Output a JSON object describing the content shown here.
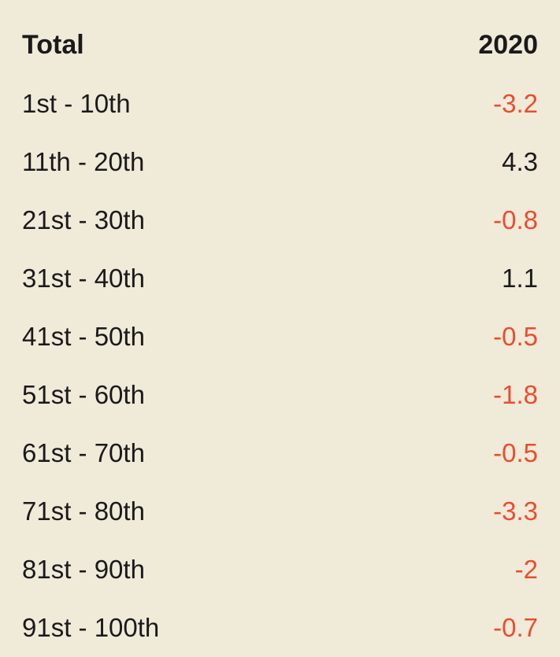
{
  "table": {
    "type": "table",
    "background_color": "#f0ead9",
    "text_color": "#1a1a1a",
    "negative_color": "#e94d2e",
    "positive_color": "#1a1a1a",
    "header_fontsize": 34,
    "header_fontweight": 700,
    "cell_fontsize": 33,
    "cell_fontweight": 400,
    "columns": [
      {
        "label": "Total",
        "align": "left"
      },
      {
        "label": "2020",
        "align": "right"
      }
    ],
    "rows": [
      {
        "label": "1st - 10th",
        "value": "-3.2",
        "is_negative": true
      },
      {
        "label": "11th - 20th",
        "value": "4.3",
        "is_negative": false
      },
      {
        "label": "21st - 30th",
        "value": "-0.8",
        "is_negative": true
      },
      {
        "label": "31st - 40th",
        "value": "1.1",
        "is_negative": false
      },
      {
        "label": "41st - 50th",
        "value": "-0.5",
        "is_negative": true
      },
      {
        "label": "51st - 60th",
        "value": "-1.8",
        "is_negative": true
      },
      {
        "label": "61st - 70th",
        "value": "-0.5",
        "is_negative": true
      },
      {
        "label": "71st - 80th",
        "value": "-3.3",
        "is_negative": true
      },
      {
        "label": "81st - 90th",
        "value": "-2",
        "is_negative": true
      },
      {
        "label": "91st - 100th",
        "value": "-0.7",
        "is_negative": true
      }
    ]
  }
}
